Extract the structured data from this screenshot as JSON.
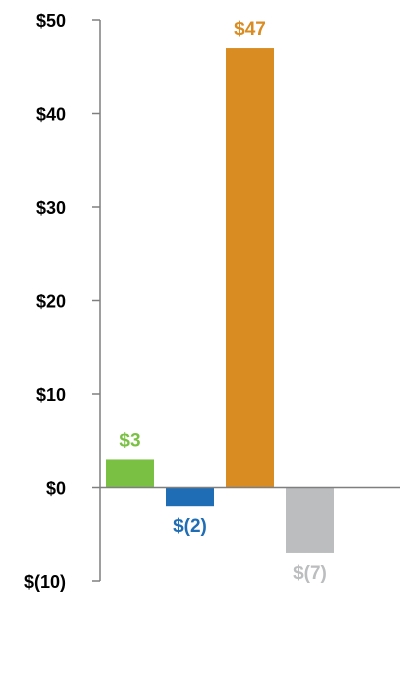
{
  "chart_data": {
    "type": "bar",
    "title": "",
    "xlabel": "",
    "ylabel": "",
    "categories": [
      "",
      "",
      "",
      ""
    ],
    "values": [
      3,
      -2,
      47,
      -7
    ],
    "data_labels": [
      "$3",
      "$(2)",
      "$47",
      "$(7)"
    ],
    "colors": [
      "#7ac143",
      "#1f6db5",
      "#d98c22",
      "#bcbdbf"
    ],
    "ylim": [
      -10,
      50
    ],
    "y_ticks": [
      50,
      40,
      30,
      20,
      10,
      0,
      -10
    ],
    "y_tick_labels": [
      "$50",
      "$40",
      "$30",
      "$20",
      "$10",
      "$0",
      "$(10)"
    ],
    "grid": false,
    "legend": "none"
  }
}
